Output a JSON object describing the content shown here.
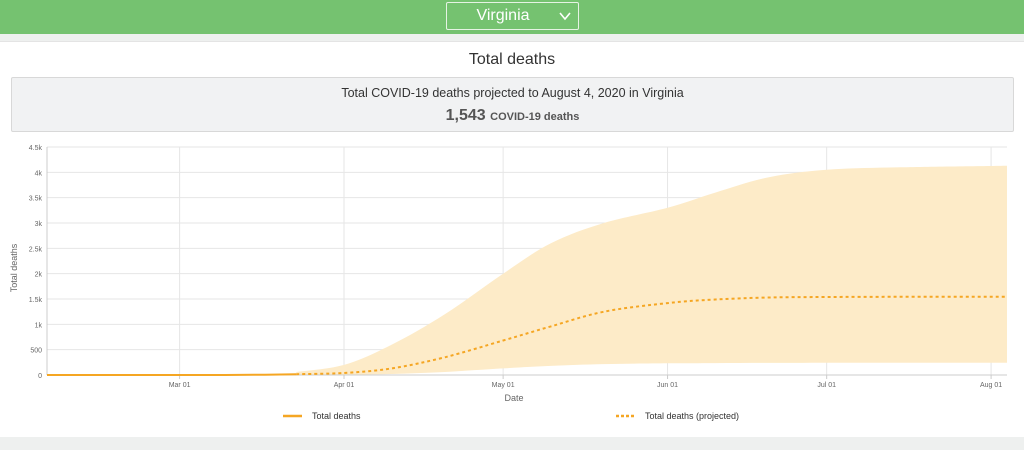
{
  "header": {
    "state_selector": {
      "selected": "Virginia",
      "icon": "chevron-down-icon"
    }
  },
  "card": {
    "title": "Total deaths",
    "summary": {
      "line": "Total COVID-19 deaths projected to August 4, 2020 in Virginia",
      "count": "1,543",
      "count_unit": "COVID-19 deaths"
    }
  },
  "chart_data": {
    "type": "area",
    "xlabel": "Date",
    "ylabel": "Total deaths",
    "x_ticks": [
      "Mar 01",
      "Apr 01",
      "May 01",
      "Jun 01",
      "Jul 01",
      "Aug 01"
    ],
    "y_ticks": [
      "0",
      "500",
      "1k",
      "1.5k",
      "2k",
      "2.5k",
      "3k",
      "3.5k",
      "4k",
      "4.5k"
    ],
    "xlim": [
      "2020-02-05",
      "2020-08-04"
    ],
    "ylim": [
      0,
      4500
    ],
    "grid": true,
    "legend": [
      "Total deaths",
      "Total deaths (projected)"
    ],
    "legend_position": "bottom",
    "colors": {
      "line": "#f5a623",
      "band": "#fdebc8"
    },
    "series": [
      {
        "name": "Total deaths",
        "style": "solid",
        "x": [
          "2020-02-05",
          "2020-02-15",
          "2020-02-25",
          "2020-03-05",
          "2020-03-15",
          "2020-03-23"
        ],
        "values": [
          0,
          0,
          0,
          0,
          3,
          15
        ]
      },
      {
        "name": "Total deaths (projected)",
        "style": "dashed",
        "x": [
          "2020-03-23",
          "2020-04-01",
          "2020-04-10",
          "2020-04-20",
          "2020-05-01",
          "2020-05-10",
          "2020-05-20",
          "2020-06-01",
          "2020-06-10",
          "2020-06-20",
          "2020-07-01",
          "2020-07-15",
          "2020-08-04"
        ],
        "values": [
          15,
          40,
          130,
          350,
          680,
          960,
          1250,
          1420,
          1490,
          1530,
          1540,
          1543,
          1543
        ]
      }
    ],
    "uncertainty_band": {
      "x": [
        "2020-03-23",
        "2020-04-01",
        "2020-04-10",
        "2020-04-20",
        "2020-05-01",
        "2020-05-10",
        "2020-05-20",
        "2020-06-01",
        "2020-06-10",
        "2020-06-20",
        "2020-07-01",
        "2020-07-15",
        "2020-08-04"
      ],
      "lower": [
        0,
        5,
        20,
        60,
        130,
        180,
        215,
        230,
        235,
        238,
        240,
        240,
        240
      ],
      "upper": [
        60,
        200,
        600,
        1200,
        2000,
        2600,
        3000,
        3300,
        3600,
        3900,
        4050,
        4100,
        4130
      ]
    }
  }
}
